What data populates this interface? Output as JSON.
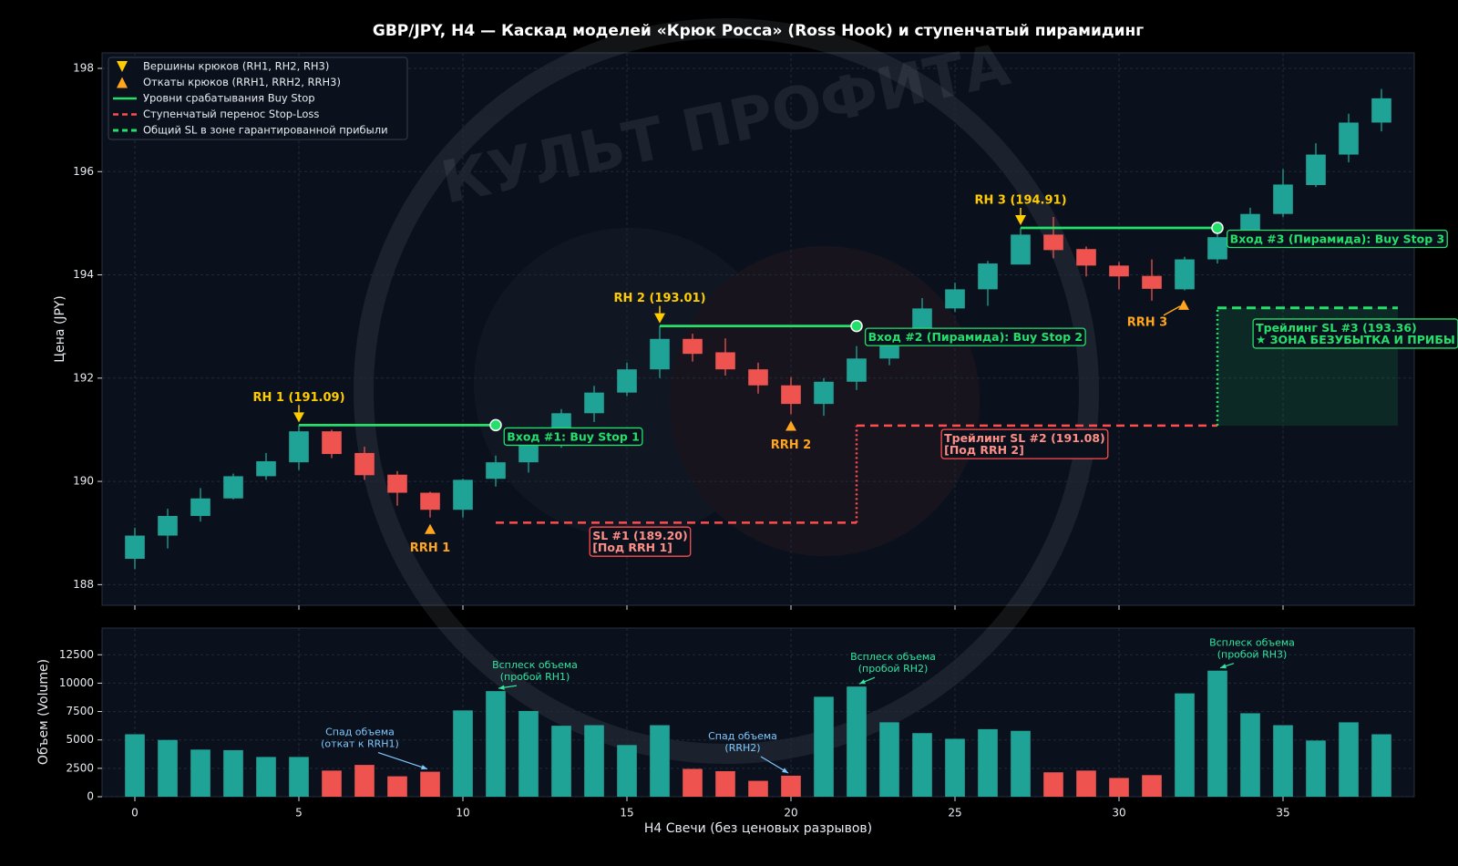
{
  "chart_data": [
    {
      "type": "candlestick",
      "title": "GBP/JPY, H4 — Каскад моделей «Крюк Росса» (Ross Hook) и ступенчатый пирамидинг",
      "ylabel": "Цена (JPY)",
      "x": [
        0,
        1,
        2,
        3,
        4,
        5,
        6,
        7,
        8,
        9,
        10,
        11,
        12,
        13,
        14,
        15,
        16,
        17,
        18,
        19,
        20,
        21,
        22,
        23,
        24,
        25,
        26,
        27,
        28,
        29,
        30,
        31,
        32,
        33,
        34,
        35,
        36,
        37,
        38
      ],
      "open": [
        188.5,
        188.95,
        189.33,
        189.67,
        190.1,
        190.37,
        190.97,
        190.55,
        190.13,
        189.78,
        189.45,
        190.05,
        190.37,
        190.73,
        191.32,
        191.72,
        192.17,
        192.76,
        192.5,
        192.17,
        191.86,
        191.5,
        191.93,
        192.38,
        192.8,
        193.35,
        193.72,
        194.2,
        194.78,
        194.5,
        194.18,
        193.98,
        193.72,
        194.3,
        194.78,
        195.18,
        195.74,
        196.33,
        196.95
      ],
      "high": [
        189.1,
        189.47,
        189.87,
        190.15,
        190.55,
        191.09,
        191.0,
        190.67,
        190.2,
        189.8,
        190.05,
        190.5,
        190.85,
        191.4,
        191.85,
        192.3,
        193.01,
        192.86,
        192.77,
        192.3,
        192.02,
        192.0,
        192.62,
        192.9,
        193.55,
        193.85,
        194.27,
        194.91,
        195.12,
        194.55,
        194.25,
        194.3,
        194.35,
        194.8,
        195.3,
        196.05,
        196.55,
        197.12,
        197.6
      ],
      "low": [
        188.3,
        188.7,
        189.22,
        189.65,
        190.03,
        190.22,
        190.45,
        190.03,
        189.53,
        189.3,
        189.3,
        189.9,
        190.17,
        190.65,
        191.15,
        191.65,
        192.0,
        192.32,
        192.05,
        191.7,
        191.3,
        191.27,
        191.77,
        192.25,
        192.7,
        193.28,
        193.4,
        194.2,
        194.32,
        193.97,
        193.72,
        193.5,
        193.7,
        194.22,
        194.75,
        195.12,
        195.7,
        196.18,
        196.78
      ],
      "close": [
        188.95,
        189.33,
        189.67,
        190.1,
        190.39,
        190.97,
        190.53,
        190.12,
        189.78,
        189.45,
        190.03,
        190.37,
        190.72,
        191.32,
        191.72,
        192.17,
        192.76,
        192.47,
        192.17,
        191.86,
        191.5,
        191.93,
        192.38,
        192.78,
        193.35,
        193.72,
        194.22,
        194.78,
        194.48,
        194.18,
        193.97,
        193.73,
        194.3,
        194.73,
        195.18,
        195.75,
        196.33,
        196.95,
        197.42
      ],
      "up_color": "#1fa396",
      "down_color": "#ef5350",
      "xlim": [
        -1,
        39
      ],
      "ylim": [
        187.6,
        198.3
      ],
      "xticks": [
        0,
        5,
        10,
        15,
        20,
        25,
        30,
        35
      ],
      "yticks": [
        188,
        190,
        192,
        194,
        196,
        198
      ],
      "grid": true,
      "legend": "upper left",
      "hook_tops": {
        "name": "Вершины крюков (RH1, RH2, RH3)",
        "color": "#ffcc00",
        "x": [
          5,
          16,
          27
        ],
        "values": [
          191.09,
          193.01,
          194.91
        ],
        "labels": [
          "RH 1 (191.09)",
          "RH 2 (193.01)",
          "RH 3 (194.91)"
        ]
      },
      "hook_pullbacks": {
        "name": "Откаты крюков (RRH1, RRH2, RRH3)",
        "color": "#ffa51f",
        "x": [
          9,
          20,
          31
        ],
        "values": [
          189.3,
          191.3,
          193.5
        ],
        "labels": [
          "RRH 1",
          "RRH 2",
          "RRH 3"
        ]
      },
      "buy_stops": {
        "name": "Уровни срабатывания Buy Stop",
        "color": "#22e06a",
        "x_start": [
          5,
          16,
          27
        ],
        "x_end": [
          11,
          22,
          33
        ],
        "values": [
          191.09,
          193.01,
          194.91
        ],
        "labels": [
          "Вход #1: Buy Stop 1",
          "Вход #2 (Пирамида): Buy Stop 2",
          "Вход #3 (Пирамида): Buy Stop 3"
        ]
      },
      "stop_loss": {
        "name": "Ступенчатый перенос Stop-Loss",
        "color": "#ff4d4d",
        "x_start": [
          11,
          22
        ],
        "x_end": [
          22,
          33
        ],
        "values": [
          189.2,
          191.08
        ],
        "labels": [
          [
            "SL #1 (189.20)",
            "[Под RRH 1]"
          ],
          [
            "Трейлинг SL #2 (191.08)",
            "[Под RRH 2]"
          ]
        ]
      },
      "common_sl": {
        "name": "Общий SL в зоне гарантированной прибыли",
        "color": "#22e06a",
        "x_start": 33,
        "x_end": 38.5,
        "value": 193.36,
        "label": [
          "Трейлинг SL #3 (193.36)",
          "★ ЗОНА БЕЗУБЫТКА И ПРИБЫ"
        ]
      },
      "watermark": "КУЛЬТ ПРОФИТА"
    },
    {
      "type": "bar",
      "xlabel": "H4 Свечи (без ценовых разрывов)",
      "ylabel": "Объем (Volume)",
      "x": [
        0,
        1,
        2,
        3,
        4,
        5,
        6,
        7,
        8,
        9,
        10,
        11,
        12,
        13,
        14,
        15,
        16,
        17,
        18,
        19,
        20,
        21,
        22,
        23,
        24,
        25,
        26,
        27,
        28,
        29,
        30,
        31,
        32,
        33,
        34,
        35,
        36,
        37,
        38
      ],
      "values": [
        5500,
        5000,
        4150,
        4100,
        3500,
        3500,
        2300,
        2800,
        1800,
        2200,
        7600,
        9300,
        7550,
        6250,
        6300,
        4550,
        6300,
        2450,
        2250,
        1400,
        1850,
        8800,
        9700,
        6550,
        5600,
        5100,
        5950,
        5800,
        2150,
        2300,
        1650,
        1900,
        9100,
        11100,
        7350,
        6300,
        4950,
        6550,
        5500
      ],
      "xlim": [
        -1,
        39
      ],
      "ylim": [
        0,
        14850
      ],
      "xticks": [
        0,
        5,
        10,
        15,
        20,
        25,
        30,
        35
      ],
      "yticks": [
        0,
        2500,
        5000,
        7500,
        10000,
        12500
      ],
      "grid": true,
      "annotations": [
        {
          "text": [
            "Спад объема",
            "(откат к RRH1)"
          ],
          "color": "#7ec8ff"
        },
        {
          "text": [
            "Всплеск объема",
            "(пробой RH1)"
          ],
          "color": "#2ee6a0"
        },
        {
          "text": [
            "Спад объема",
            "(RRH2)"
          ],
          "color": "#7ec8ff"
        },
        {
          "text": [
            "Всплеск объема",
            "(пробой RH2)"
          ],
          "color": "#2ee6a0"
        },
        {
          "text": [
            "Всплеск объема",
            "(пробой RH3)"
          ],
          "color": "#2ee6a0"
        }
      ]
    }
  ]
}
